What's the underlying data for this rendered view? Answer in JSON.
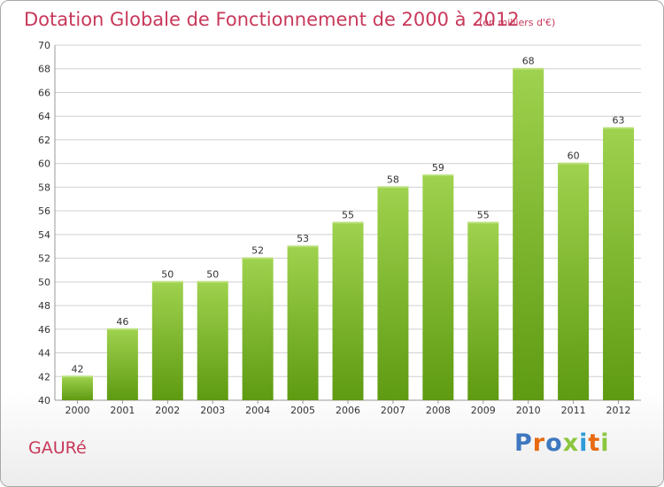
{
  "title": "Dotation Globale de Fonctionnement de 2000 à 2012",
  "subtitle": "(en milliers d'€)",
  "commune": "GAURé",
  "logo": "Proxiti",
  "colors": {
    "title": "#c8385a",
    "bar_top": "#9fd24e",
    "bar_bottom": "#5e9a12",
    "grid": "#d0d0d0",
    "logo": [
      "#3f78c0",
      "#e86a10",
      "#3f78c0",
      "#8cc63e",
      "#2e9bd8",
      "#e86a10",
      "#8cc63e"
    ]
  },
  "chart_data": {
    "type": "bar",
    "categories": [
      "2000",
      "2001",
      "2002",
      "2003",
      "2004",
      "2005",
      "2006",
      "2007",
      "2008",
      "2009",
      "2010",
      "2011",
      "2012"
    ],
    "values": [
      42,
      46,
      50,
      50,
      52,
      53,
      55,
      58,
      59,
      55,
      68,
      60,
      63
    ],
    "ylim": [
      40,
      70
    ],
    "yticks": [
      40,
      42,
      44,
      46,
      48,
      50,
      52,
      54,
      56,
      58,
      60,
      62,
      64,
      66,
      68,
      70
    ],
    "title": "Dotation Globale de Fonctionnement de 2000 à 2012",
    "xlabel": "",
    "ylabel": "",
    "grid": true,
    "data_labels": true
  }
}
